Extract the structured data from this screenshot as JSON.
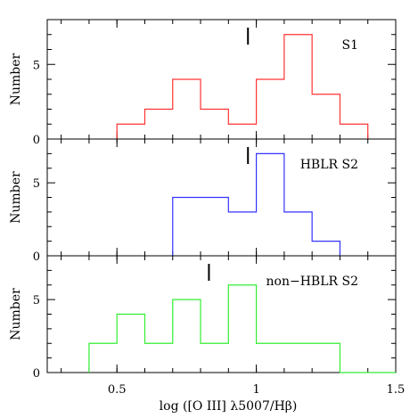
{
  "chart_data": {
    "type": "bar",
    "xlabel": "log ([O III] λ5007/Hβ)",
    "xlim": [
      0.25,
      1.5
    ],
    "x_ticks": [
      {
        "value": 0.5,
        "label": "0.5"
      },
      {
        "value": 1.0,
        "label": "1"
      },
      {
        "value": 1.5,
        "label": "1.5"
      }
    ],
    "bin_width": 0.1,
    "panels": [
      {
        "label": "S1",
        "ylabel": "Number",
        "ylim": [
          0,
          8
        ],
        "y_ticks": [
          {
            "value": 0,
            "label": "0"
          },
          {
            "value": 5,
            "label": "5"
          }
        ],
        "color": "#ff3333",
        "bin_edges": [
          0.5,
          0.6,
          0.7,
          0.8,
          0.9,
          1.0,
          1.1,
          1.2,
          1.3,
          1.4
        ],
        "counts": [
          1,
          2,
          4,
          2,
          1,
          4,
          7,
          3,
          1
        ],
        "marker_x": 0.97
      },
      {
        "label": "HBLR S2",
        "ylabel": "Number",
        "ylim": [
          0,
          8
        ],
        "y_ticks": [
          {
            "value": 0,
            "label": "0"
          },
          {
            "value": 5,
            "label": "5"
          }
        ],
        "color": "#3333ff",
        "bin_edges": [
          0.7,
          0.8,
          0.9,
          1.0,
          1.1,
          1.2,
          1.3
        ],
        "counts": [
          4,
          4,
          3,
          7,
          3,
          1
        ],
        "marker_x": 0.97
      },
      {
        "label": "non−HBLR S2",
        "ylabel": "Number",
        "ylim": [
          0,
          8
        ],
        "y_ticks": [
          {
            "value": 0,
            "label": "0"
          },
          {
            "value": 5,
            "label": "5"
          }
        ],
        "color": "#33ee33",
        "bin_edges": [
          0.4,
          0.5,
          0.6,
          0.7,
          0.8,
          0.9,
          1.0,
          1.1,
          1.2,
          1.3,
          1.4,
          1.5
        ],
        "counts": [
          2,
          4,
          2,
          5,
          2,
          6,
          2,
          2,
          2,
          0,
          0
        ],
        "marker_x": 0.83
      }
    ]
  }
}
